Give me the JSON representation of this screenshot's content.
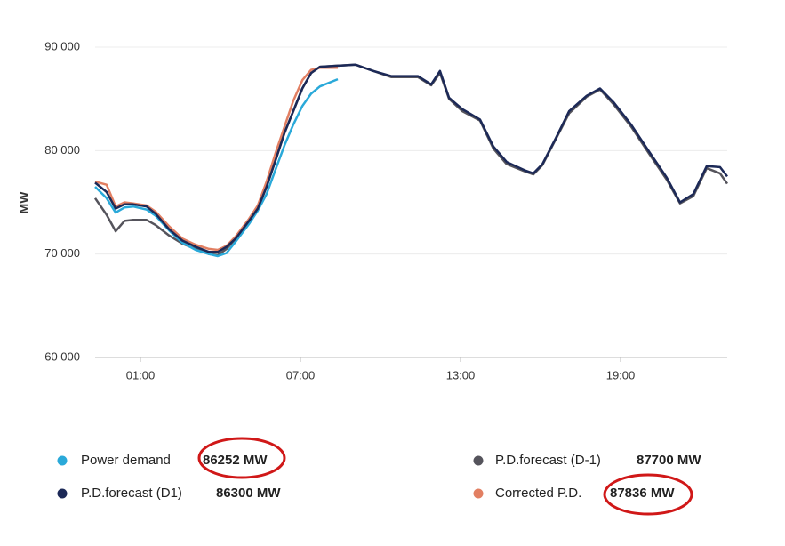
{
  "chart_data": {
    "type": "line",
    "y_label": "MW",
    "x": [
      -0.7,
      -0.27,
      0.07,
      0.4,
      0.73,
      1.23,
      1.57,
      2.07,
      2.57,
      3.07,
      3.57,
      3.9,
      4.23,
      4.57,
      5.07,
      5.4,
      5.73,
      6.07,
      6.4,
      6.73,
      7.07,
      7.4,
      7.73,
      8.4,
      9.07,
      9.73,
      10.4,
      11.4,
      11.9,
      12.23,
      12.57,
      13.07,
      13.73,
      14.23,
      14.73,
      15.4,
      15.73,
      16.07,
      16.57,
      17.07,
      17.73,
      18.23,
      18.73,
      19.4,
      20.07,
      20.73,
      21.23,
      21.73,
      22.23,
      22.73,
      23
    ],
    "xlim": [
      -0.7,
      23
    ],
    "xticks": [
      {
        "value": 1,
        "label": "01:00"
      },
      {
        "value": 7,
        "label": "07:00"
      },
      {
        "value": 13,
        "label": "13:00"
      },
      {
        "value": 19,
        "label": "19:00"
      }
    ],
    "ylim": [
      60000,
      90000
    ],
    "yticks": [
      {
        "value": 60000,
        "label": "60 000"
      },
      {
        "value": 70000,
        "label": "70 000"
      },
      {
        "value": 80000,
        "label": "80 000"
      },
      {
        "value": 90000,
        "label": "90 000"
      }
    ],
    "grid": true,
    "series": [
      {
        "name": "Power demand",
        "legend_value": "86252 MW",
        "color": "#2aa9d9",
        "values": [
          76500,
          75400,
          74000,
          74500,
          74600,
          74300,
          73700,
          72300,
          71100,
          70400,
          70000,
          69800,
          70100,
          71200,
          72900,
          74200,
          75800,
          78200,
          80500,
          82500,
          84300,
          85500,
          86200,
          86900,
          null,
          null,
          null,
          null,
          null,
          null,
          null,
          null,
          null,
          null,
          null,
          null,
          null,
          null,
          null,
          null,
          null,
          null,
          null,
          null,
          null,
          null,
          null,
          null,
          null,
          null,
          null
        ]
      },
      {
        "name": "P.D.forecast (D1)",
        "legend_value": "86300 MW",
        "color": "#1c2957",
        "values": [
          76900,
          76000,
          74400,
          74800,
          74800,
          74600,
          73900,
          72400,
          71300,
          70700,
          70200,
          70200,
          70700,
          71500,
          73200,
          74400,
          76500,
          79100,
          81700,
          83800,
          86000,
          87500,
          88100,
          88200,
          88300,
          87700,
          87200,
          87200,
          86400,
          87700,
          85100,
          84000,
          83000,
          80400,
          78900,
          78100,
          77800,
          78700,
          81200,
          83800,
          85300,
          86000,
          84700,
          82500,
          79900,
          77400,
          75000,
          75800,
          78500,
          78400,
          77500
        ]
      },
      {
        "name": "P.D.forecast (D-1)",
        "legend_value": "87700 MW",
        "color": "#55545c",
        "values": [
          75400,
          73800,
          72200,
          73200,
          73300,
          73300,
          72800,
          71800,
          71000,
          70500,
          70000,
          69900,
          70500,
          71500,
          73200,
          74400,
          76500,
          79100,
          81700,
          83800,
          86000,
          87500,
          88100,
          88200,
          88300,
          87700,
          87100,
          87100,
          86300,
          87500,
          85000,
          83800,
          82900,
          80200,
          78700,
          78000,
          77700,
          78600,
          81100,
          83600,
          85200,
          85900,
          84500,
          82300,
          79700,
          77200,
          74900,
          75600,
          78300,
          77800,
          76800
        ]
      },
      {
        "name": "Corrected P.D.",
        "legend_value": "87836 MW",
        "color": "#e27f62",
        "values": [
          77000,
          76700,
          74600,
          75000,
          74900,
          74700,
          74100,
          72700,
          71500,
          70900,
          70500,
          70400,
          70800,
          71700,
          73400,
          74700,
          77000,
          79800,
          82300,
          84800,
          86800,
          87800,
          88000,
          88000,
          null,
          null,
          null,
          null,
          null,
          null,
          null,
          null,
          null,
          null,
          null,
          null,
          null,
          null,
          null,
          null,
          null,
          null,
          null,
          null,
          null,
          null,
          null,
          null,
          null,
          null,
          null
        ]
      }
    ]
  }
}
